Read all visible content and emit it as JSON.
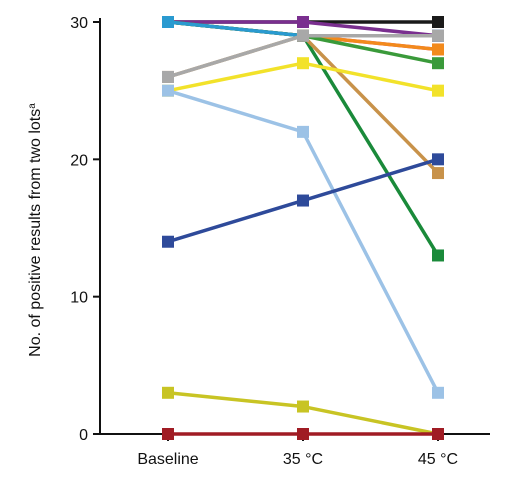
{
  "chart_data": {
    "type": "line",
    "ylabel": "No. of positive results from two lots",
    "ylabel_superscript": "a",
    "x": [
      "Baseline",
      "35 °C",
      "45 °C"
    ],
    "ylim": [
      0,
      30
    ],
    "yticks": [
      0,
      10,
      20,
      30
    ],
    "grid": false,
    "series": [
      {
        "color": "#1a1a1a",
        "values": [
          30,
          30,
          30
        ]
      },
      {
        "color": "#7a2f8f",
        "values": [
          30,
          30,
          29
        ]
      },
      {
        "color": "#e8348a",
        "values": [
          30,
          29,
          28
        ]
      },
      {
        "color": "#f28a1c",
        "values": [
          30,
          29,
          28
        ]
      },
      {
        "color": "#3a9a3a",
        "values": [
          30,
          29,
          27
        ]
      },
      {
        "color": "#1a8a3a",
        "values": [
          30,
          29,
          13
        ]
      },
      {
        "color": "#2a9ad0",
        "values": [
          30,
          29,
          29
        ]
      },
      {
        "color": "#c8924a",
        "values": [
          26,
          29,
          19
        ]
      },
      {
        "color": "#a8a8a8",
        "values": [
          26,
          29,
          29
        ]
      },
      {
        "color": "#f2e22a",
        "values": [
          25,
          27,
          25
        ]
      },
      {
        "color": "#9cc2e6",
        "values": [
          25,
          22,
          3
        ]
      },
      {
        "color": "#2e4a9a",
        "values": [
          14,
          17,
          20
        ]
      },
      {
        "color": "#c8c424",
        "values": [
          3,
          2,
          0
        ]
      },
      {
        "color": "#a01c24",
        "values": [
          0,
          0,
          0
        ]
      }
    ]
  }
}
